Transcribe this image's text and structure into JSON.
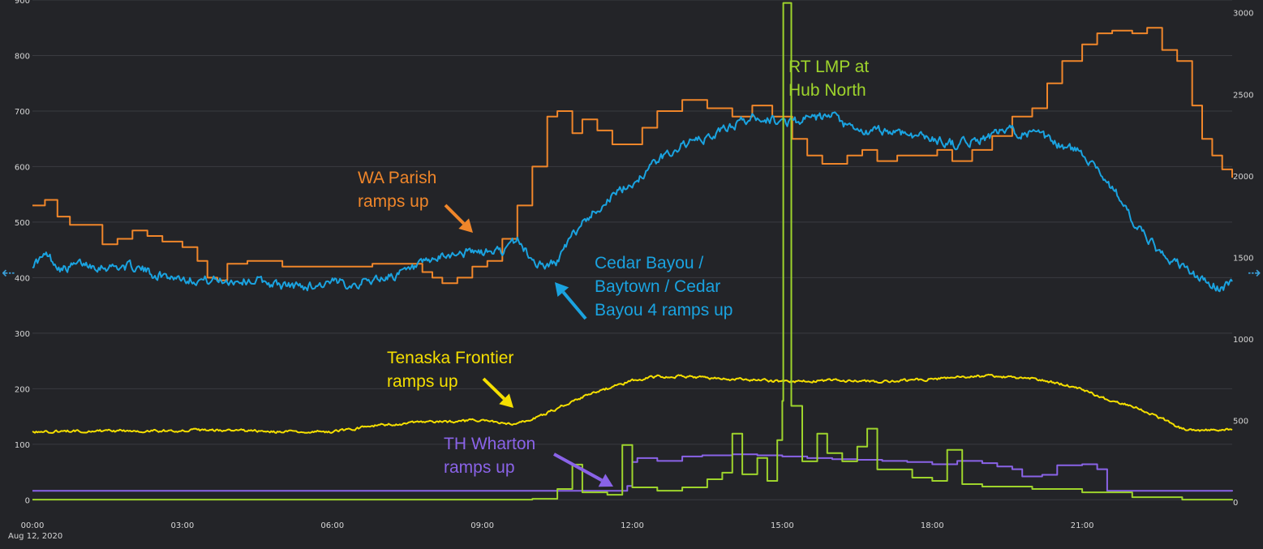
{
  "chart_data": {
    "type": "line",
    "title": "",
    "x_ticks": [
      "00:00",
      "03:00",
      "06:00",
      "09:00",
      "12:00",
      "15:00",
      "18:00",
      "21:00"
    ],
    "date_label": "Aug 12, 2020",
    "x_range_hours": [
      0,
      24
    ],
    "y_left": {
      "ticks": [
        0,
        100,
        200,
        300,
        400,
        500,
        600,
        700,
        800,
        900
      ],
      "range": [
        -20,
        900
      ]
    },
    "y_right": {
      "ticks": [
        0,
        500,
        1000,
        1500,
        2000,
        2500,
        3000
      ],
      "range": [
        -54,
        3078
      ]
    },
    "grid": true,
    "series": [
      {
        "name": "WA Parish",
        "axis": "left",
        "color": "#f0862a",
        "style": "step",
        "points": [
          [
            0,
            530
          ],
          [
            0.25,
            540
          ],
          [
            0.5,
            510
          ],
          [
            0.75,
            495
          ],
          [
            1.0,
            495
          ],
          [
            1.4,
            460
          ],
          [
            1.7,
            470
          ],
          [
            2.0,
            485
          ],
          [
            2.3,
            475
          ],
          [
            2.6,
            465
          ],
          [
            3.0,
            455
          ],
          [
            3.3,
            430
          ],
          [
            3.5,
            400
          ],
          [
            3.7,
            395
          ],
          [
            3.9,
            425
          ],
          [
            4.3,
            430
          ],
          [
            5.0,
            420
          ],
          [
            6.0,
            420
          ],
          [
            6.8,
            425
          ],
          [
            7.5,
            425
          ],
          [
            7.8,
            410
          ],
          [
            8.0,
            400
          ],
          [
            8.2,
            390
          ],
          [
            8.5,
            400
          ],
          [
            8.8,
            420
          ],
          [
            9.1,
            430
          ],
          [
            9.4,
            470
          ],
          [
            9.7,
            530
          ],
          [
            10.0,
            600
          ],
          [
            10.3,
            690
          ],
          [
            10.5,
            700
          ],
          [
            10.8,
            660
          ],
          [
            11.0,
            685
          ],
          [
            11.3,
            665
          ],
          [
            11.6,
            640
          ],
          [
            11.9,
            640
          ],
          [
            12.2,
            670
          ],
          [
            12.5,
            700
          ],
          [
            13.0,
            720
          ],
          [
            13.5,
            705
          ],
          [
            14.0,
            690
          ],
          [
            14.4,
            710
          ],
          [
            14.8,
            690
          ],
          [
            15.2,
            650
          ],
          [
            15.5,
            620
          ],
          [
            15.8,
            605
          ],
          [
            16.3,
            620
          ],
          [
            16.6,
            630
          ],
          [
            16.9,
            610
          ],
          [
            17.3,
            620
          ],
          [
            17.8,
            620
          ],
          [
            18.1,
            630
          ],
          [
            18.4,
            610
          ],
          [
            18.8,
            630
          ],
          [
            19.2,
            655
          ],
          [
            19.6,
            690
          ],
          [
            20.0,
            705
          ],
          [
            20.3,
            750
          ],
          [
            20.6,
            790
          ],
          [
            21.0,
            820
          ],
          [
            21.3,
            840
          ],
          [
            21.6,
            845
          ],
          [
            22.0,
            840
          ],
          [
            22.3,
            850
          ],
          [
            22.6,
            810
          ],
          [
            22.9,
            790
          ],
          [
            23.2,
            710
          ],
          [
            23.4,
            650
          ],
          [
            23.6,
            620
          ],
          [
            23.8,
            595
          ],
          [
            24.0,
            580
          ]
        ]
      },
      {
        "name": "Cedar Bayou / Baytown / Cedar Bayou 4",
        "axis": "left",
        "color": "#1aa3e0",
        "style": "noisy",
        "points": [
          [
            0,
            425
          ],
          [
            0.3,
            440
          ],
          [
            0.6,
            415
          ],
          [
            1.0,
            425
          ],
          [
            1.5,
            420
          ],
          [
            2.0,
            420
          ],
          [
            2.5,
            405
          ],
          [
            3.0,
            400
          ],
          [
            3.5,
            395
          ],
          [
            4.0,
            395
          ],
          [
            4.5,
            395
          ],
          [
            5.0,
            385
          ],
          [
            5.5,
            385
          ],
          [
            6.0,
            390
          ],
          [
            6.5,
            390
          ],
          [
            7.0,
            400
          ],
          [
            7.5,
            410
          ],
          [
            8.0,
            430
          ],
          [
            8.5,
            445
          ],
          [
            9.0,
            445
          ],
          [
            9.5,
            450
          ],
          [
            9.7,
            470
          ],
          [
            10.0,
            430
          ],
          [
            10.3,
            420
          ],
          [
            10.5,
            430
          ],
          [
            10.7,
            460
          ],
          [
            11.0,
            500
          ],
          [
            11.5,
            540
          ],
          [
            12.0,
            570
          ],
          [
            12.5,
            610
          ],
          [
            13.0,
            640
          ],
          [
            13.5,
            650
          ],
          [
            14.0,
            675
          ],
          [
            14.5,
            690
          ],
          [
            15.0,
            680
          ],
          [
            15.5,
            685
          ],
          [
            16.0,
            690
          ],
          [
            16.3,
            670
          ],
          [
            16.6,
            660
          ],
          [
            17.0,
            665
          ],
          [
            17.5,
            660
          ],
          [
            18.0,
            650
          ],
          [
            18.5,
            640
          ],
          [
            19.0,
            650
          ],
          [
            19.5,
            665
          ],
          [
            20.0,
            660
          ],
          [
            20.5,
            640
          ],
          [
            21.0,
            625
          ],
          [
            21.3,
            600
          ],
          [
            21.5,
            570
          ],
          [
            21.8,
            540
          ],
          [
            22.0,
            500
          ],
          [
            22.3,
            470
          ],
          [
            22.6,
            440
          ],
          [
            23.0,
            420
          ],
          [
            23.4,
            395
          ],
          [
            23.8,
            380
          ],
          [
            24.0,
            395
          ]
        ]
      },
      {
        "name": "Tenaska Frontier",
        "axis": "left",
        "color": "#f5df00",
        "style": "noisy",
        "points": [
          [
            0,
            122
          ],
          [
            1.0,
            124
          ],
          [
            2.0,
            124
          ],
          [
            3.0,
            125
          ],
          [
            4.0,
            125
          ],
          [
            5.0,
            122
          ],
          [
            6.0,
            123
          ],
          [
            7.0,
            135
          ],
          [
            8.0,
            140
          ],
          [
            9.0,
            143
          ],
          [
            9.6,
            135
          ],
          [
            10.0,
            145
          ],
          [
            10.5,
            165
          ],
          [
            11.0,
            185
          ],
          [
            11.5,
            200
          ],
          [
            12.0,
            215
          ],
          [
            12.5,
            222
          ],
          [
            13.0,
            222
          ],
          [
            14.0,
            217
          ],
          [
            15.0,
            213
          ],
          [
            16.0,
            215
          ],
          [
            17.0,
            212
          ],
          [
            18.0,
            218
          ],
          [
            19.0,
            223
          ],
          [
            20.0,
            218
          ],
          [
            20.5,
            210
          ],
          [
            21.0,
            200
          ],
          [
            21.5,
            180
          ],
          [
            22.0,
            170
          ],
          [
            22.5,
            150
          ],
          [
            23.0,
            128
          ],
          [
            23.5,
            125
          ],
          [
            24.0,
            127
          ]
        ]
      },
      {
        "name": "TH Wharton",
        "axis": "left",
        "color": "#8a63e8",
        "style": "step",
        "points": [
          [
            0,
            16
          ],
          [
            11.0,
            16
          ],
          [
            11.8,
            16
          ],
          [
            11.9,
            25
          ],
          [
            12.0,
            68
          ],
          [
            12.1,
            75
          ],
          [
            12.5,
            70
          ],
          [
            13.0,
            78
          ],
          [
            13.4,
            80
          ],
          [
            14.0,
            82
          ],
          [
            14.5,
            80
          ],
          [
            15.0,
            78
          ],
          [
            15.5,
            75
          ],
          [
            16.0,
            73
          ],
          [
            16.5,
            72
          ],
          [
            17.0,
            70
          ],
          [
            17.5,
            68
          ],
          [
            18.0,
            64
          ],
          [
            18.5,
            70
          ],
          [
            19.0,
            66
          ],
          [
            19.3,
            60
          ],
          [
            19.6,
            55
          ],
          [
            19.8,
            42
          ],
          [
            20.2,
            45
          ],
          [
            20.5,
            62
          ],
          [
            21.0,
            64
          ],
          [
            21.3,
            55
          ],
          [
            21.5,
            16
          ],
          [
            22.0,
            16
          ],
          [
            24.0,
            15
          ]
        ]
      },
      {
        "name": "RT LMP at Hub North",
        "axis": "right",
        "color": "#9ed42c",
        "style": "step",
        "points": [
          [
            0,
            15
          ],
          [
            10.0,
            20
          ],
          [
            10.5,
            80
          ],
          [
            10.8,
            230
          ],
          [
            11.0,
            60
          ],
          [
            11.5,
            45
          ],
          [
            11.8,
            350
          ],
          [
            12.0,
            90
          ],
          [
            12.5,
            70
          ],
          [
            13.0,
            90
          ],
          [
            13.5,
            140
          ],
          [
            13.8,
            180
          ],
          [
            14.0,
            420
          ],
          [
            14.2,
            170
          ],
          [
            14.5,
            270
          ],
          [
            14.7,
            130
          ],
          [
            14.9,
            380
          ],
          [
            15.0,
            620
          ],
          [
            15.02,
            3060
          ],
          [
            15.15,
            3060
          ],
          [
            15.18,
            590
          ],
          [
            15.4,
            250
          ],
          [
            15.7,
            420
          ],
          [
            15.9,
            300
          ],
          [
            16.2,
            250
          ],
          [
            16.5,
            340
          ],
          [
            16.7,
            450
          ],
          [
            16.9,
            200
          ],
          [
            17.2,
            200
          ],
          [
            17.6,
            150
          ],
          [
            18.0,
            130
          ],
          [
            18.3,
            320
          ],
          [
            18.6,
            110
          ],
          [
            19.0,
            95
          ],
          [
            20.0,
            80
          ],
          [
            21.0,
            60
          ],
          [
            22.0,
            30
          ],
          [
            23.0,
            15
          ],
          [
            24.0,
            10
          ]
        ]
      }
    ],
    "annotations": [
      {
        "lines": [
          "WA Parish",
          "ramps up"
        ],
        "color": "#f0862a"
      },
      {
        "lines": [
          "Cedar Bayou /",
          "Baytown / Cedar",
          "Bayou 4 ramps up"
        ],
        "color": "#1aa3e0"
      },
      {
        "lines": [
          "Tenaska Frontier",
          "ramps up"
        ],
        "color": "#f5df00"
      },
      {
        "lines": [
          "TH Wharton",
          "ramps up"
        ],
        "color": "#8a63e8"
      },
      {
        "lines": [
          "RT LMP at",
          "Hub North"
        ],
        "color": "#9ed42c"
      }
    ]
  },
  "nav": {
    "left_arrow": "⇠",
    "right_arrow": "⇢"
  },
  "colors": {
    "background": "#232428",
    "grid": "#3a3b40",
    "axis_text": "#d6d6d6"
  }
}
